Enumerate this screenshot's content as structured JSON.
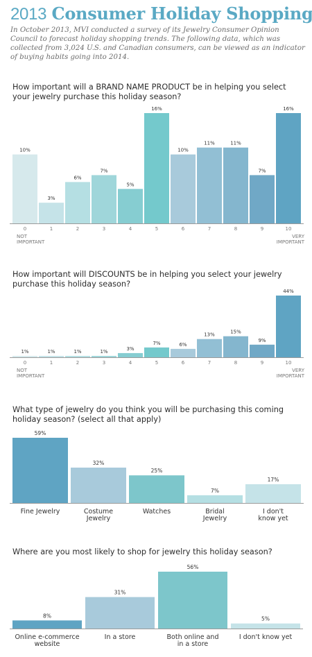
{
  "header": {
    "year": "2013",
    "title": "Consumer Holiday Shopping",
    "intro": "In October 2013, MVI conducted a survey of its Jewelry Consumer Opinion Council to forecast holiday shopping trends. The following data, which was collected from 3,024 U.S. and Canadian consumers, can be viewed as an indicator of buying habits going into 2014."
  },
  "questions": {
    "q1": "How important will a BRAND NAME PRODUCT be in helping you select your jewelry purchase this holiday season?",
    "q2": "How important will DISCOUNTS be in helping you select your jewelry purchase this holiday season?",
    "q3": "What type of jewelry do you think you will be purchasing this coming holiday season? (select all that apply)",
    "q4": "Where are you most likely to shop for jewelry this holiday season?"
  },
  "colors": [
    "#d6e9ec",
    "#c5e3e8",
    "#b5dfe3",
    "#9fd6da",
    "#86cdd1",
    "#74c9cc",
    "#a8cadb",
    "#92bfd4",
    "#84b6ce",
    "#70a8c6",
    "#5fa4c3"
  ],
  "chart_data": [
    {
      "type": "bar",
      "title": "How important will a BRAND NAME PRODUCT be in helping you select your jewelry purchase this holiday season?",
      "categories": [
        "0",
        "1",
        "2",
        "3",
        "4",
        "5",
        "6",
        "7",
        "8",
        "9",
        "10"
      ],
      "values": [
        10,
        3,
        6,
        7,
        5,
        16,
        10,
        11,
        11,
        7,
        16
      ],
      "value_labels": [
        "10%",
        "3%",
        "6%",
        "7%",
        "5%",
        "16%",
        "10%",
        "11%",
        "11%",
        "7%",
        "16%"
      ],
      "low_label": [
        "NOT",
        "IMPORTANT"
      ],
      "high_label": [
        "VERY",
        "IMPORTANT"
      ],
      "ylim": [
        0,
        16
      ],
      "colors": [
        "#d6e9ec",
        "#c5e3e8",
        "#b5dfe3",
        "#9fd6da",
        "#86cdd1",
        "#74c9cc",
        "#a8cadb",
        "#92bfd4",
        "#84b6ce",
        "#70a8c6",
        "#5fa4c3"
      ]
    },
    {
      "type": "bar",
      "title": "How important will DISCOUNTS be in helping you select your jewelry purchase this holiday season?",
      "categories": [
        "0",
        "1",
        "2",
        "3",
        "4",
        "5",
        "6",
        "7",
        "8",
        "9",
        "10"
      ],
      "values": [
        1,
        1,
        1,
        1,
        3,
        7,
        6,
        13,
        15,
        9,
        44
      ],
      "value_labels": [
        "1%",
        "1%",
        "1%",
        "1%",
        "3%",
        "7%",
        "6%",
        "13%",
        "15%",
        "9%",
        "44%"
      ],
      "low_label": [
        "NOT",
        "IMPORTANT"
      ],
      "high_label": [
        "VERY",
        "IMPORTANT"
      ],
      "ylim": [
        0,
        44
      ],
      "colors": [
        "#d6e9ec",
        "#c5e3e8",
        "#b5dfe3",
        "#9fd6da",
        "#86cdd1",
        "#74c9cc",
        "#a8cadb",
        "#92bfd4",
        "#84b6ce",
        "#70a8c6",
        "#5fa4c3"
      ]
    },
    {
      "type": "bar",
      "title": "What type of jewelry do you think you will be purchasing this coming holiday season? (select all that apply)",
      "categories": [
        [
          "Fine Jewelry"
        ],
        [
          "Costume",
          "Jewelry"
        ],
        [
          "Watches"
        ],
        [
          "Bridal",
          "Jewelry"
        ],
        [
          "I don't",
          "know yet"
        ]
      ],
      "values": [
        59,
        32,
        25,
        7,
        17
      ],
      "value_labels": [
        "59%",
        "32%",
        "25%",
        "7%",
        "17%"
      ],
      "ylim": [
        0,
        59
      ],
      "colors": [
        "#5fa4c3",
        "#a8cadb",
        "#7dc6cb",
        "#b5dfe3",
        "#c5e3e8"
      ]
    },
    {
      "type": "bar",
      "title": "Where are you most likely to shop for jewelry this holiday season?",
      "categories": [
        [
          "Online e-commerce",
          "website"
        ],
        [
          "In a store"
        ],
        [
          "Both online and",
          "in a store"
        ],
        [
          "I don't know yet"
        ]
      ],
      "values": [
        8,
        31,
        56,
        5
      ],
      "value_labels": [
        "8%",
        "31%",
        "56%",
        "5%"
      ],
      "ylim": [
        0,
        56
      ],
      "colors": [
        "#5fa4c3",
        "#a8cadb",
        "#7dc6cb",
        "#c5e3e8"
      ]
    }
  ]
}
